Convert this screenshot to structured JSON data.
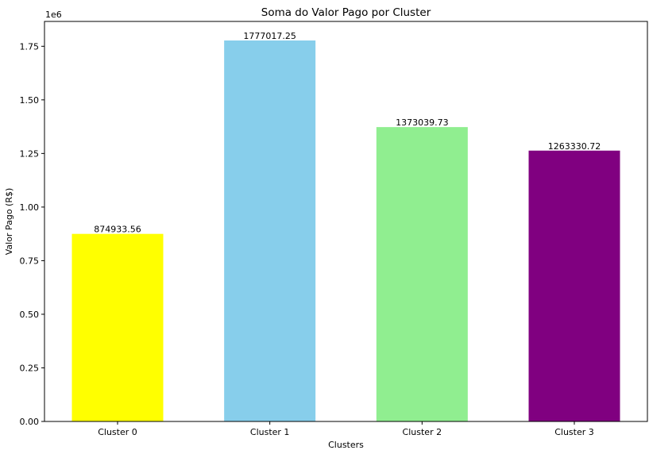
{
  "chart_data": {
    "type": "bar",
    "title": "Soma do Valor Pago por Cluster",
    "xlabel": "Clusters",
    "ylabel": "Valor Pago (R$)",
    "y_offset_label": "1e6",
    "categories": [
      "Cluster 0",
      "Cluster 1",
      "Cluster 2",
      "Cluster 3"
    ],
    "values": [
      874933.56,
      1777017.25,
      1373039.73,
      1263330.72
    ],
    "value_labels": [
      "874933.56",
      "1777017.25",
      "1373039.73",
      "1263330.72"
    ],
    "colors": [
      "#ffff00",
      "#87ceeb",
      "#90ee90",
      "#800080"
    ],
    "ylim": [
      0,
      1865868.1
    ],
    "yticks": [
      0,
      250000,
      500000,
      750000,
      1000000,
      1250000,
      1500000,
      1750000
    ],
    "ytick_labels": [
      "0.00",
      "0.25",
      "0.50",
      "0.75",
      "1.00",
      "1.25",
      "1.50",
      "1.75"
    ],
    "grid": false,
    "legend": "none"
  }
}
